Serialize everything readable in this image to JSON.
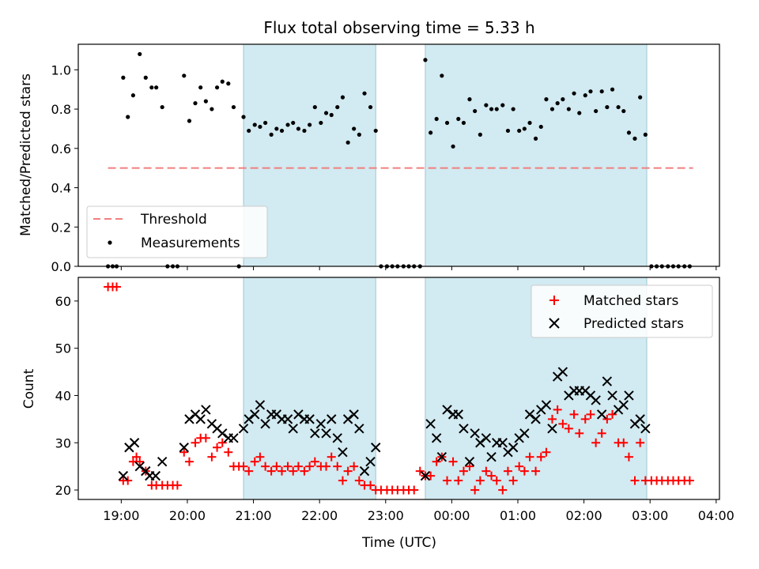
{
  "chart_data": [
    {
      "type": "scatter",
      "title": "Flux total observing time = 5.33 h",
      "xlabel": "",
      "ylabel": "Matched/Predicted stars",
      "xlim": [
        18.35,
        28.05
      ],
      "ylim": [
        0.0,
        1.13
      ],
      "yticks": [
        0.0,
        0.2,
        0.4,
        0.6,
        0.8,
        1.0
      ],
      "yticklabels": [
        "0.0",
        "0.2",
        "0.4",
        "0.6",
        "0.8",
        "1.0"
      ],
      "shaded_intervals": [
        [
          20.85,
          22.85
        ],
        [
          23.6,
          26.95
        ]
      ],
      "threshold": {
        "name": "Threshold",
        "value": 0.5,
        "x_range": [
          18.8,
          27.65
        ],
        "color": "#f08080"
      },
      "legend": {
        "position": "lower-left",
        "entries": [
          "Threshold",
          "Measurements"
        ]
      },
      "series": [
        {
          "name": "Measurements",
          "color": "#000000",
          "x": [
            18.8,
            18.87,
            18.93,
            19.03,
            19.1,
            19.18,
            19.28,
            19.37,
            19.46,
            19.53,
            19.62,
            19.7,
            19.78,
            19.85,
            19.95,
            20.03,
            20.12,
            20.2,
            20.28,
            20.37,
            20.45,
            20.53,
            20.62,
            20.7,
            20.78,
            20.85,
            20.93,
            21.02,
            21.1,
            21.18,
            21.27,
            21.35,
            21.43,
            21.52,
            21.6,
            21.68,
            21.77,
            21.85,
            21.93,
            22.02,
            22.1,
            22.18,
            22.27,
            22.35,
            22.43,
            22.52,
            22.6,
            22.68,
            22.77,
            22.85,
            22.93,
            23.02,
            23.1,
            23.18,
            23.27,
            23.35,
            23.43,
            23.52,
            23.6,
            23.68,
            23.77,
            23.85,
            23.93,
            24.02,
            24.1,
            24.18,
            24.27,
            24.35,
            24.43,
            24.52,
            24.6,
            24.68,
            24.77,
            24.85,
            24.93,
            25.02,
            25.1,
            25.18,
            25.27,
            25.35,
            25.43,
            25.52,
            25.6,
            25.68,
            25.77,
            25.85,
            25.93,
            26.02,
            26.1,
            26.18,
            26.27,
            26.35,
            26.43,
            26.52,
            26.6,
            26.68,
            26.77,
            26.85,
            26.93,
            27.02,
            27.1,
            27.18,
            27.27,
            27.35,
            27.43,
            27.52,
            27.6
          ],
          "y": [
            0.0,
            0.0,
            0.0,
            0.96,
            0.76,
            0.87,
            1.08,
            0.96,
            0.91,
            0.91,
            0.81,
            0.0,
            0.0,
            0.0,
            0.97,
            0.74,
            0.83,
            0.91,
            0.84,
            0.8,
            0.91,
            0.94,
            0.93,
            0.81,
            0.0,
            0.76,
            0.69,
            0.72,
            0.71,
            0.73,
            0.67,
            0.7,
            0.69,
            0.72,
            0.73,
            0.7,
            0.69,
            0.72,
            0.81,
            0.73,
            0.78,
            0.77,
            0.81,
            0.86,
            0.63,
            0.7,
            0.67,
            0.88,
            0.81,
            0.69,
            0.0,
            0.0,
            0.0,
            0.0,
            0.0,
            0.0,
            0.0,
            0.0,
            1.05,
            0.68,
            0.75,
            0.97,
            0.73,
            0.61,
            0.75,
            0.73,
            0.85,
            0.79,
            0.67,
            0.82,
            0.8,
            0.8,
            0.82,
            0.69,
            0.8,
            0.69,
            0.7,
            0.73,
            0.65,
            0.71,
            0.85,
            0.8,
            0.83,
            0.85,
            0.8,
            0.88,
            0.78,
            0.87,
            0.89,
            0.79,
            0.89,
            0.81,
            0.9,
            0.81,
            0.79,
            0.68,
            0.65,
            0.86,
            0.67,
            0.0,
            0.0,
            0.0,
            0.0,
            0.0,
            0.0,
            0.0,
            0.0
          ]
        }
      ]
    },
    {
      "type": "scatter",
      "title": "",
      "xlabel": "Time (UTC)",
      "ylabel": "Count",
      "xlim": [
        18.35,
        28.05
      ],
      "ylim": [
        18,
        65
      ],
      "xticks": [
        19,
        20,
        21,
        22,
        23,
        24,
        25,
        26,
        27,
        28
      ],
      "xticklabels": [
        "19:00",
        "20:00",
        "21:00",
        "22:00",
        "23:00",
        "00:00",
        "01:00",
        "02:00",
        "03:00",
        "04:00"
      ],
      "yticks": [
        20,
        30,
        40,
        50,
        60
      ],
      "yticklabels": [
        "20",
        "30",
        "40",
        "50",
        "60"
      ],
      "shaded_intervals": [
        [
          20.85,
          22.85
        ],
        [
          23.6,
          26.95
        ]
      ],
      "legend": {
        "position": "top-right",
        "entries": [
          "Matched stars",
          "Predicted stars"
        ]
      },
      "series": [
        {
          "name": "Matched stars",
          "marker": "+",
          "color": "#ff0000",
          "x": [
            18.8,
            18.87,
            18.93,
            19.03,
            19.1,
            19.18,
            19.23,
            19.28,
            19.37,
            19.46,
            19.53,
            19.62,
            19.7,
            19.78,
            19.85,
            19.95,
            20.03,
            20.12,
            20.2,
            20.28,
            20.37,
            20.45,
            20.53,
            20.62,
            20.7,
            20.78,
            20.85,
            20.93,
            21.02,
            21.1,
            21.18,
            21.27,
            21.35,
            21.43,
            21.52,
            21.6,
            21.68,
            21.77,
            21.85,
            21.93,
            22.02,
            22.1,
            22.18,
            22.27,
            22.35,
            22.43,
            22.52,
            22.6,
            22.68,
            22.77,
            22.85,
            22.93,
            23.02,
            23.1,
            23.18,
            23.27,
            23.35,
            23.43,
            23.52,
            23.6,
            23.68,
            23.77,
            23.85,
            23.93,
            24.02,
            24.1,
            24.18,
            24.27,
            24.35,
            24.43,
            24.52,
            24.6,
            24.68,
            24.77,
            24.85,
            24.93,
            25.02,
            25.1,
            25.18,
            25.27,
            25.35,
            25.43,
            25.52,
            25.6,
            25.68,
            25.77,
            25.85,
            25.93,
            26.02,
            26.1,
            26.18,
            26.27,
            26.35,
            26.43,
            26.52,
            26.6,
            26.68,
            26.77,
            26.85,
            26.93,
            27.02,
            27.1,
            27.18,
            27.27,
            27.35,
            27.43,
            27.52,
            27.6
          ],
          "y": [
            63,
            63,
            63,
            22,
            22,
            26,
            27,
            26,
            24,
            21,
            21,
            21,
            21,
            21,
            21,
            28,
            26,
            30,
            31,
            31,
            27,
            29,
            30,
            28,
            25,
            25,
            25,
            24,
            26,
            27,
            25,
            24,
            25,
            24,
            25,
            24,
            25,
            24,
            25,
            26,
            25,
            25,
            27,
            25,
            22,
            24,
            25,
            22,
            21,
            21,
            20,
            20,
            20,
            20,
            20,
            20,
            20,
            20,
            24,
            23,
            23,
            26,
            27,
            22,
            26,
            22,
            24,
            25,
            20,
            22,
            24,
            23,
            22,
            20,
            24,
            22,
            25,
            24,
            27,
            24,
            27,
            28,
            35,
            37,
            34,
            33,
            36,
            32,
            35,
            36,
            30,
            32,
            35,
            36,
            30,
            30,
            27,
            22,
            30,
            22,
            22,
            22,
            22,
            22,
            22,
            22,
            22,
            22
          ]
        },
        {
          "name": "Predicted stars",
          "marker": "x",
          "color": "#000000",
          "x": [
            19.03,
            19.12,
            19.2,
            19.28,
            19.37,
            19.43,
            19.52,
            19.62,
            19.95,
            20.03,
            20.12,
            20.2,
            20.28,
            20.37,
            20.45,
            20.53,
            20.62,
            20.7,
            20.85,
            20.93,
            21.02,
            21.1,
            21.18,
            21.27,
            21.35,
            21.43,
            21.52,
            21.6,
            21.68,
            21.77,
            21.85,
            21.93,
            22.02,
            22.1,
            22.18,
            22.27,
            22.35,
            22.43,
            22.52,
            22.6,
            22.68,
            22.77,
            22.85,
            23.6,
            23.68,
            23.77,
            23.85,
            23.93,
            24.02,
            24.1,
            24.18,
            24.27,
            24.35,
            24.43,
            24.52,
            24.6,
            24.68,
            24.77,
            24.85,
            24.93,
            25.02,
            25.1,
            25.18,
            25.27,
            25.35,
            25.43,
            25.52,
            25.6,
            25.68,
            25.77,
            25.85,
            25.93,
            26.02,
            26.1,
            26.18,
            26.27,
            26.35,
            26.43,
            26.52,
            26.6,
            26.68,
            26.77,
            26.85,
            26.93
          ],
          "y": [
            23,
            29,
            30,
            25,
            24,
            23,
            23,
            26,
            29,
            35,
            36,
            35,
            37,
            34,
            33,
            32,
            31,
            31,
            33,
            35,
            36,
            38,
            34,
            36,
            36,
            35,
            35,
            33,
            36,
            35,
            35,
            32,
            34,
            32,
            35,
            31,
            28,
            35,
            36,
            33,
            24,
            26,
            29,
            23,
            34,
            31,
            27,
            37,
            36,
            36,
            33,
            26,
            32,
            30,
            31,
            27,
            30,
            30,
            28,
            29,
            31,
            32,
            36,
            35,
            37,
            38,
            33,
            44,
            45,
            40,
            41,
            41,
            41,
            40,
            39,
            36,
            43,
            40,
            37,
            38,
            40,
            34,
            35,
            33
          ]
        }
      ]
    }
  ]
}
